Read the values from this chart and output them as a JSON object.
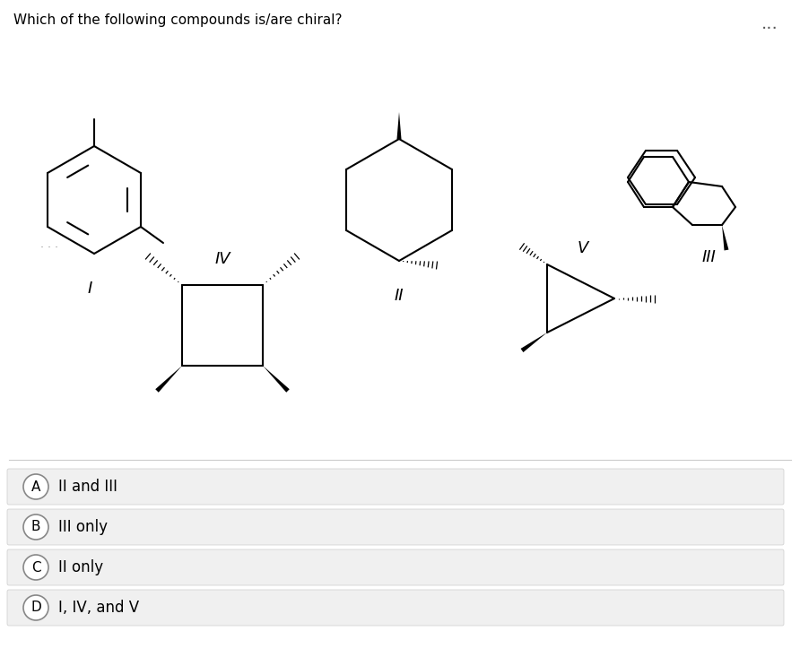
{
  "title": "Which of the following compounds is/are chiral?",
  "question_fontsize": 11,
  "background_color": "#ffffff",
  "answer_bg_color": "#f0f0f0",
  "answers": [
    {
      "label": "A",
      "text": "II and III"
    },
    {
      "label": "B",
      "text": "III only"
    },
    {
      "label": "C",
      "text": "II only"
    },
    {
      "label": "D",
      "text": "I, IV, and V"
    }
  ],
  "roman_labels": [
    "I",
    "II",
    "III",
    "IV",
    "V"
  ],
  "line_color": "#000000",
  "dots_color": "#555555"
}
